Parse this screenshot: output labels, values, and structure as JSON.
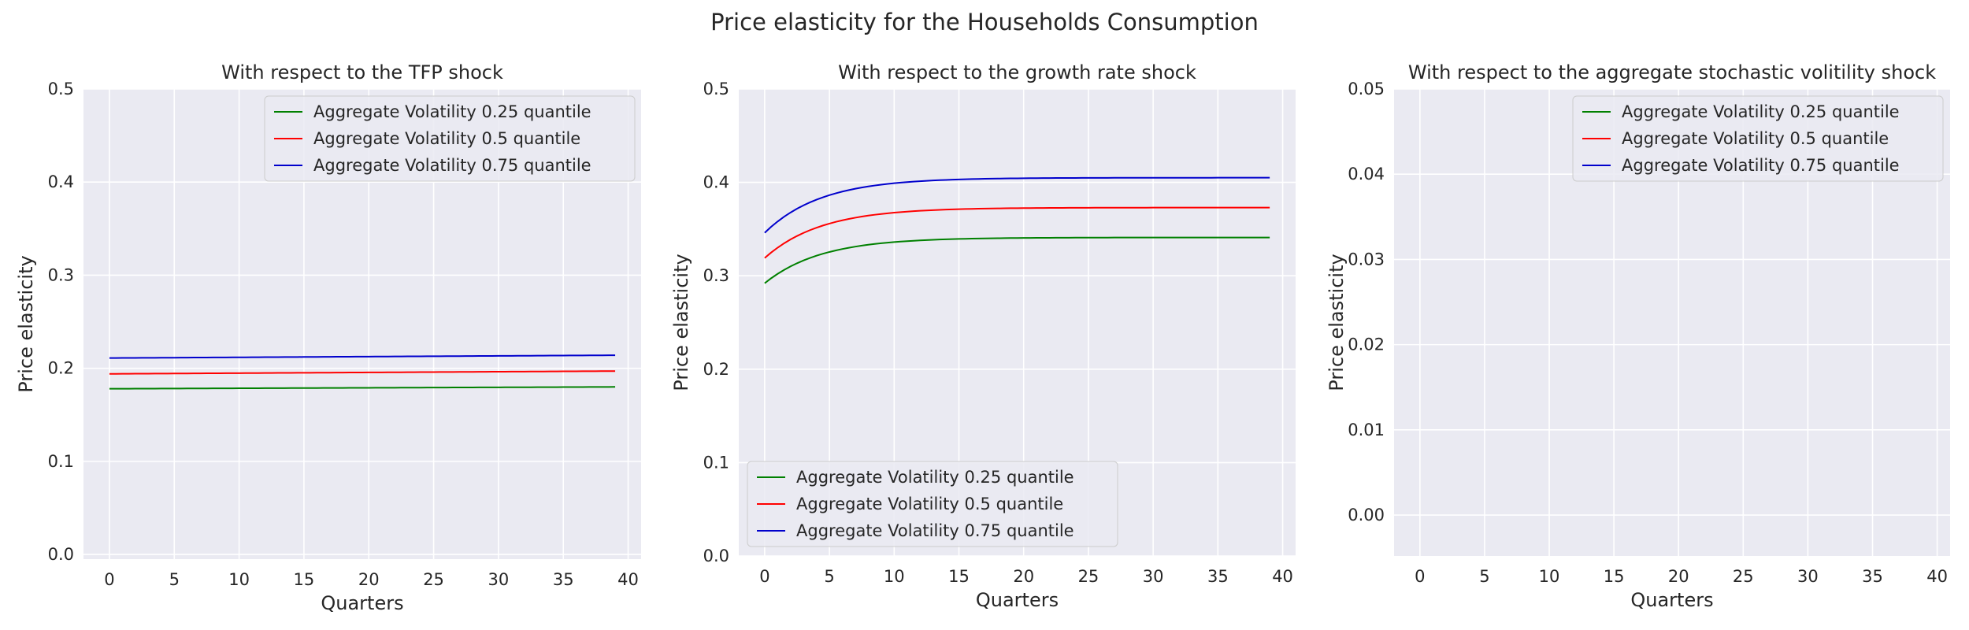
{
  "figure_title": "Price elasticity for the Households Consumption",
  "chart_data": [
    {
      "type": "line",
      "title": "With respect to the TFP shock",
      "xlabel": "Quarters",
      "ylabel": "Price elasticity",
      "xlim": [
        -2,
        41
      ],
      "ylim": [
        -0.005,
        0.5
      ],
      "xticks": [
        0,
        5,
        10,
        15,
        20,
        25,
        30,
        35,
        40
      ],
      "yticks": [
        0.0,
        0.1,
        0.2,
        0.3,
        0.4,
        0.5
      ],
      "ytick_labels": [
        "0.0",
        "0.1",
        "0.2",
        "0.3",
        "0.4",
        "0.5"
      ],
      "grid": true,
      "legend_position": "upper right",
      "series": [
        {
          "name": "Aggregate Volatility 0.25 quantile",
          "color": "#008000",
          "form": "linear",
          "x_start": 0,
          "x_end": 39,
          "y_start": 0.178,
          "y_end": 0.18
        },
        {
          "name": "Aggregate Volatility 0.5 quantile",
          "color": "#ff0000",
          "form": "linear",
          "x_start": 0,
          "x_end": 39,
          "y_start": 0.194,
          "y_end": 0.197
        },
        {
          "name": "Aggregate Volatility 0.75 quantile",
          "color": "#0000cc",
          "form": "linear",
          "x_start": 0,
          "x_end": 39,
          "y_start": 0.211,
          "y_end": 0.214
        }
      ]
    },
    {
      "type": "line",
      "title": "With respect to the growth rate shock",
      "xlabel": "Quarters",
      "ylabel": "Price elasticity",
      "xlim": [
        -2,
        41
      ],
      "ylim": [
        0.0,
        0.5
      ],
      "xticks": [
        0,
        5,
        10,
        15,
        20,
        25,
        30,
        35,
        40
      ],
      "yticks": [
        0.0,
        0.1,
        0.2,
        0.3,
        0.4,
        0.5
      ],
      "ytick_labels": [
        "0.0",
        "0.1",
        "0.2",
        "0.3",
        "0.4",
        "0.5"
      ],
      "grid": true,
      "legend_position": "lower left",
      "series": [
        {
          "name": "Aggregate Volatility 0.25 quantile",
          "color": "#008000",
          "form": "saturating",
          "x_start": 0,
          "x_end": 39,
          "y_start": 0.292,
          "y_end": 0.341,
          "rate": 0.23
        },
        {
          "name": "Aggregate Volatility 0.5 quantile",
          "color": "#ff0000",
          "form": "saturating",
          "x_start": 0,
          "x_end": 39,
          "y_start": 0.319,
          "y_end": 0.373,
          "rate": 0.23
        },
        {
          "name": "Aggregate Volatility 0.75 quantile",
          "color": "#0000cc",
          "form": "saturating",
          "x_start": 0,
          "x_end": 39,
          "y_start": 0.346,
          "y_end": 0.405,
          "rate": 0.23
        }
      ]
    },
    {
      "type": "line",
      "title": "With respect to the aggregate stochastic volitility shock",
      "xlabel": "Quarters",
      "ylabel": "Price elasticity",
      "xlim": [
        -2,
        41
      ],
      "ylim": [
        -0.0048,
        0.05
      ],
      "xticks": [
        0,
        5,
        10,
        15,
        20,
        25,
        30,
        35,
        40
      ],
      "yticks": [
        0.0,
        0.01,
        0.02,
        0.03,
        0.04,
        0.05
      ],
      "ytick_labels": [
        "0.00",
        "0.01",
        "0.02",
        "0.03",
        "0.04",
        "0.05"
      ],
      "grid": true,
      "legend_position": "upper right",
      "series": [
        {
          "name": "Aggregate Volatility 0.25 quantile",
          "color": "#008000",
          "form": "none"
        },
        {
          "name": "Aggregate Volatility 0.5 quantile",
          "color": "#ff0000",
          "form": "none"
        },
        {
          "name": "Aggregate Volatility 0.75 quantile",
          "color": "#0000cc",
          "form": "none"
        }
      ]
    }
  ]
}
